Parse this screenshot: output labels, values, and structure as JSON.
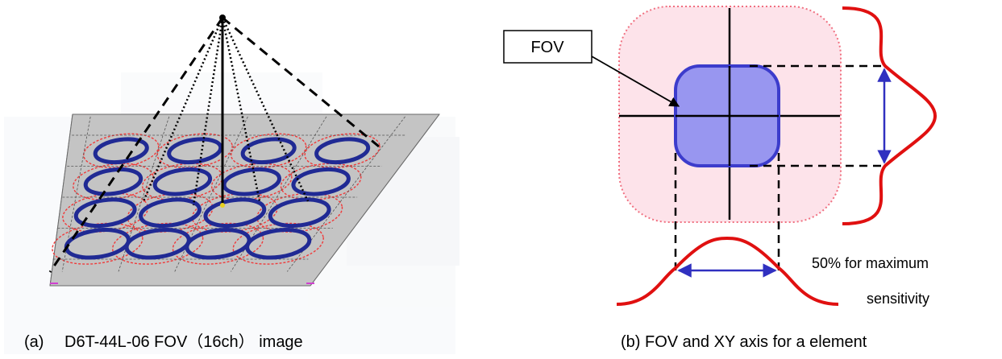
{
  "left_panel": {
    "caption": "(a)　 D6T-44L-06 FOV（16ch） image"
  },
  "right_panel": {
    "callout_label": "FOV",
    "note_line1": "50% for maximum",
    "note_line2": "sensitivity",
    "caption": "(b) FOV and XY axis for a element"
  },
  "colors": {
    "fov_fill": "#8f8ff0",
    "fov_stroke": "#3c3ccc",
    "outer_fill": "#fde3ea",
    "outer_stroke": "#f07080",
    "curve": "#e01010",
    "arrow": "#3030c0",
    "plane": "#c4c4c4",
    "grid_blue": "#202a94",
    "grid_red": "#f03a3a"
  },
  "icons": [
    "sensor-apex-icon",
    "arrow-icon"
  ]
}
